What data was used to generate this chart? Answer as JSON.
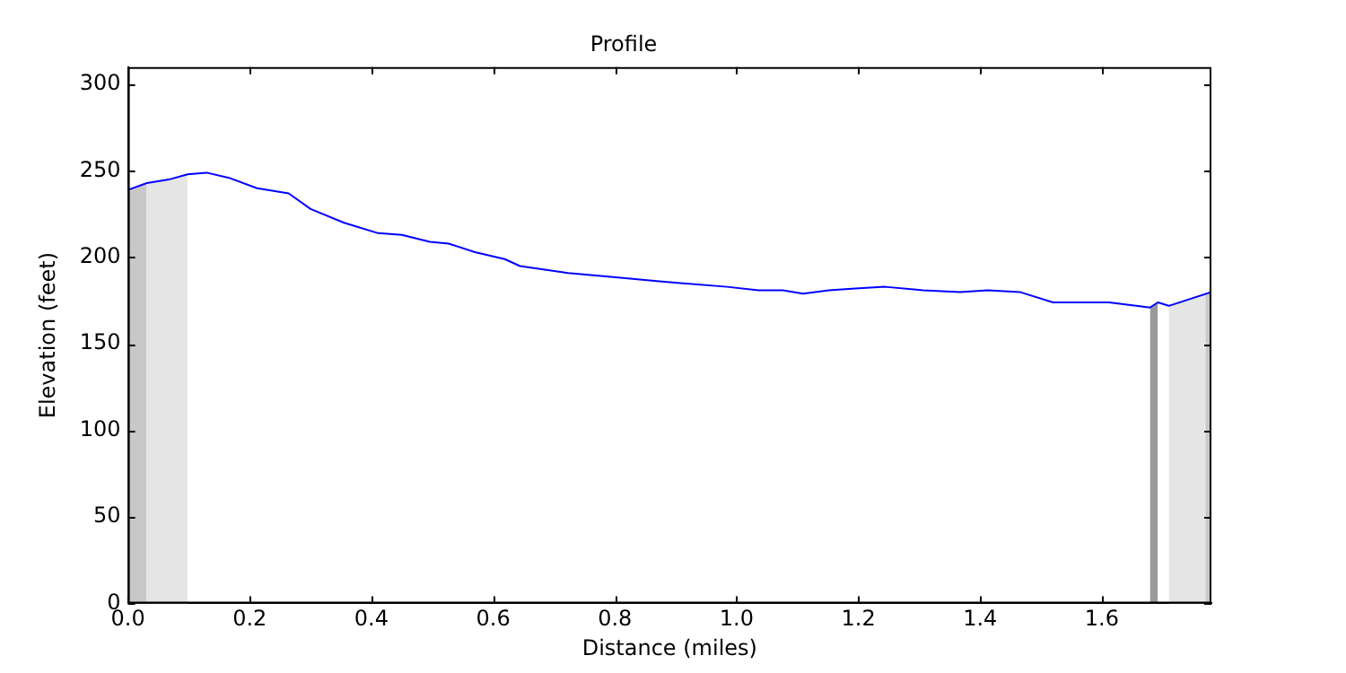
{
  "chart_data": {
    "type": "line",
    "title": "Profile",
    "xlabel": "Distance (miles)",
    "ylabel": "Elevation (feet)",
    "xlim": [
      0,
      1.78
    ],
    "xticks": [
      {
        "value": 0,
        "label": "0.0"
      },
      0.2,
      0.4,
      0.6,
      0.8,
      {
        "value": 1,
        "label": "1.0"
      },
      1.2,
      1.4,
      1.6
    ],
    "ylim": [
      0,
      310
    ],
    "yticks": [
      0,
      50,
      100,
      150,
      200,
      250,
      300
    ],
    "grid": false,
    "legend": false,
    "series": [
      {
        "type": "area",
        "color": "#c8c8c8",
        "x": [
          0,
          0.031
        ],
        "values": [
          239,
          243
        ]
      },
      {
        "type": "area",
        "color": "#e5e5e5",
        "x": [
          0.031,
          0.067,
          0.098
        ],
        "values": [
          243,
          245,
          248
        ]
      },
      {
        "type": "area",
        "color": "#999999",
        "x": [
          1.679,
          1.692
        ],
        "values": [
          171,
          174
        ]
      },
      {
        "type": "area",
        "color": "#e5e5e5",
        "x": [
          1.71,
          1.77
        ],
        "values": [
          172,
          179
        ]
      },
      {
        "type": "area",
        "color": "#c8c8c8",
        "x": [
          1.77,
          1.78
        ],
        "values": [
          179,
          180
        ]
      },
      {
        "color": "#0000ff",
        "x": [
          0,
          0.031,
          0.067,
          0.098,
          0.129,
          0.166,
          0.212,
          0.264,
          0.3,
          0.355,
          0.411,
          0.45,
          0.496,
          0.527,
          0.57,
          0.619,
          0.644,
          0.723,
          0.785,
          0.877,
          0.984,
          1.036,
          1.076,
          1.109,
          1.152,
          1.195,
          1.244,
          1.306,
          1.367,
          1.413,
          1.465,
          1.52,
          1.612,
          1.679,
          1.692,
          1.71,
          1.78
        ],
        "values": [
          239,
          243,
          245,
          248,
          249,
          246,
          240,
          237,
          228,
          220,
          214,
          213,
          209,
          208,
          203,
          199,
          195,
          191,
          189,
          186,
          183,
          181,
          181,
          179,
          181,
          182,
          183,
          181,
          180,
          181,
          180,
          174,
          174,
          171,
          174,
          172,
          180
        ]
      }
    ]
  }
}
